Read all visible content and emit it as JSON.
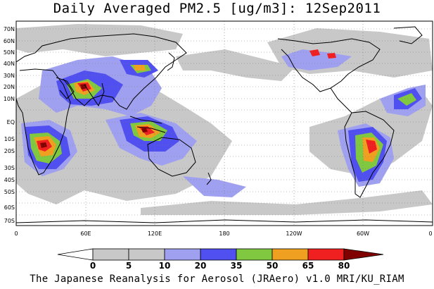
{
  "title": "Daily Averaged PM2.5 [ug/m3]: 12Sep2011",
  "credit": "The Japanese Reanalysis for Aerosol (JRAero) v1.0 MRI/KU_RIAM",
  "latitude_labels": [
    "70N",
    "60N",
    "50N",
    "40N",
    "30N",
    "20N",
    "10N",
    "EQ",
    "10S",
    "20S",
    "30S",
    "40S",
    "50S",
    "60S",
    "70S"
  ],
  "longitude_labels": [
    "0",
    "60E",
    "120E",
    "180",
    "120W",
    "60W",
    "0"
  ],
  "colorbar": {
    "levels": [
      "0",
      "5",
      "10",
      "20",
      "35",
      "50",
      "65",
      "80"
    ],
    "colors": [
      "#ffffff",
      "#c8c8c8",
      "#a0a0f0",
      "#5050f0",
      "#80c840",
      "#f0a020",
      "#f02020",
      "#800000"
    ]
  },
  "map_colors": {
    "ocean": "#ffffff",
    "coast": "#000000",
    "gridline": "#7a7a7a"
  }
}
